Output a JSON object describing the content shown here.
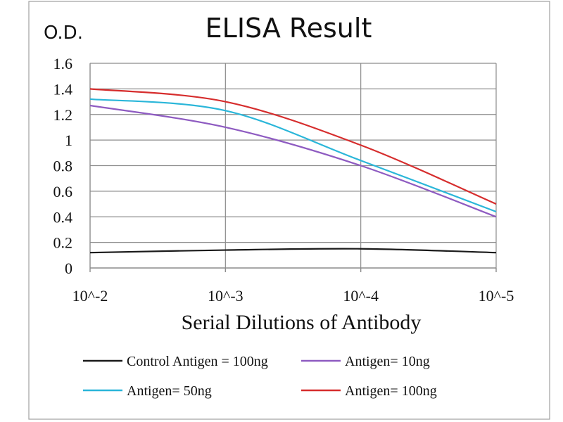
{
  "chart_data": {
    "type": "line",
    "title": "ELISA Result",
    "ylabel": "O.D.",
    "xlabel": "Serial Dilutions  of Antibody",
    "categories": [
      "10^-2",
      "10^-3",
      "10^-4",
      "10^-5"
    ],
    "ylim": [
      0,
      1.6
    ],
    "yticks": [
      "0",
      "0.2",
      "0.4",
      "0.6",
      "0.8",
      "1",
      "1.2",
      "1.4",
      "1.6"
    ],
    "grid": true,
    "legend_position": "bottom",
    "series": [
      {
        "name": "Control Antigen = 100ng",
        "color": "#1a1a1a",
        "values": [
          0.12,
          0.14,
          0.15,
          0.12
        ]
      },
      {
        "name": "Antigen= 10ng",
        "color": "#8e5bc1",
        "values": [
          1.27,
          1.1,
          0.8,
          0.4
        ]
      },
      {
        "name": "Antigen= 50ng",
        "color": "#2ab6d9",
        "values": [
          1.32,
          1.23,
          0.84,
          0.44
        ]
      },
      {
        "name": "Antigen= 100ng",
        "color": "#d62d2d",
        "values": [
          1.4,
          1.3,
          0.96,
          0.5
        ]
      }
    ]
  }
}
